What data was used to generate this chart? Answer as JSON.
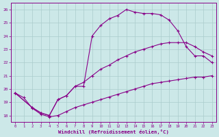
{
  "bg_color": "#cce8e8",
  "grid_color": "#aacccc",
  "line_color": "#880088",
  "xlabel": "Windchill (Refroidissement éolien,°C)",
  "xlim": [
    -0.5,
    23.5
  ],
  "ylim": [
    17.5,
    26.5
  ],
  "yticks": [
    18,
    19,
    20,
    21,
    22,
    23,
    24,
    25,
    26
  ],
  "xticks": [
    0,
    1,
    2,
    3,
    4,
    5,
    6,
    7,
    8,
    9,
    10,
    11,
    12,
    13,
    14,
    15,
    16,
    17,
    18,
    19,
    20,
    21,
    22,
    23
  ],
  "series": [
    {
      "x": [
        0,
        2,
        3,
        4,
        5,
        6,
        7,
        8,
        9,
        10,
        11,
        12,
        13,
        14,
        15,
        16,
        17,
        18,
        19,
        20,
        21,
        22,
        23
      ],
      "y": [
        19.7,
        18.6,
        18.2,
        18.0,
        19.2,
        19.5,
        20.2,
        20.2,
        24.0,
        24.8,
        25.3,
        25.55,
        26.0,
        25.8,
        25.7,
        25.7,
        25.6,
        25.2,
        24.4,
        23.2,
        22.5,
        22.5,
        22.0
      ]
    },
    {
      "x": [
        0,
        1,
        2,
        3,
        4,
        5,
        6,
        7,
        8,
        9,
        10,
        11,
        12,
        13,
        14,
        15,
        16,
        17,
        18,
        19,
        20,
        21,
        22,
        23
      ],
      "y": [
        19.7,
        19.35,
        18.55,
        18.1,
        17.9,
        18.0,
        18.3,
        18.6,
        18.8,
        19.0,
        19.2,
        19.4,
        19.6,
        19.8,
        20.0,
        20.2,
        20.4,
        20.5,
        20.6,
        20.7,
        20.8,
        20.9,
        20.9,
        21.0
      ]
    },
    {
      "x": [
        0,
        2,
        3,
        4,
        5,
        6,
        7,
        8,
        9,
        10,
        11,
        12,
        13,
        14,
        15,
        16,
        17,
        18,
        19,
        20,
        21,
        22,
        23
      ],
      "y": [
        19.7,
        18.6,
        18.2,
        18.0,
        19.2,
        19.5,
        20.2,
        20.5,
        21.0,
        21.5,
        21.8,
        22.2,
        22.5,
        22.8,
        23.0,
        23.2,
        23.4,
        23.5,
        23.5,
        23.5,
        23.2,
        22.8,
        22.5
      ]
    }
  ]
}
